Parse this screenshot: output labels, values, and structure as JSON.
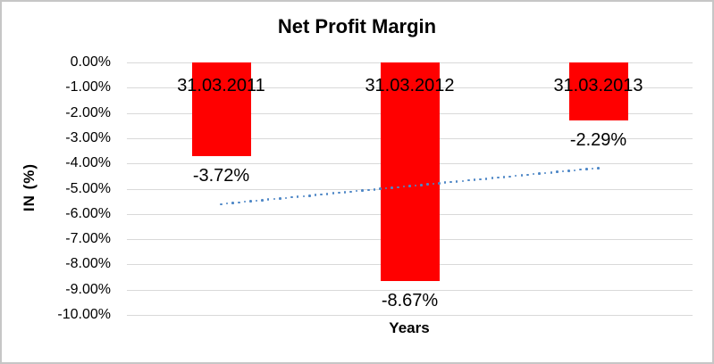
{
  "chart_data": {
    "type": "bar",
    "title": "Net Profit Margin",
    "xlabel": "Years",
    "ylabel": "IN (%)",
    "categories": [
      "31.03.2011",
      "31.03.2012",
      "31.03.2013"
    ],
    "values": [
      -3.72,
      -8.67,
      -2.29
    ],
    "data_labels": [
      "-3.72%",
      "-8.67%",
      "-2.29%"
    ],
    "ylim": [
      -10,
      0
    ],
    "ytick_step": 1,
    "ytick_labels": [
      "0.00%",
      "-1.00%",
      "-2.00%",
      "-3.00%",
      "-4.00%",
      "-5.00%",
      "-6.00%",
      "-7.00%",
      "-8.00%",
      "-9.00%",
      "-10.00%"
    ],
    "grid": true,
    "legend_position": "none",
    "bar_color": "#FF0000",
    "gridline_color": "#D9D9D9",
    "trendline": {
      "type": "linear",
      "style": "dotted",
      "color": "#4E87C6",
      "start": {
        "category": "31.03.2011",
        "value": -5.61
      },
      "end": {
        "category": "31.03.2013",
        "value": -4.18
      }
    }
  }
}
